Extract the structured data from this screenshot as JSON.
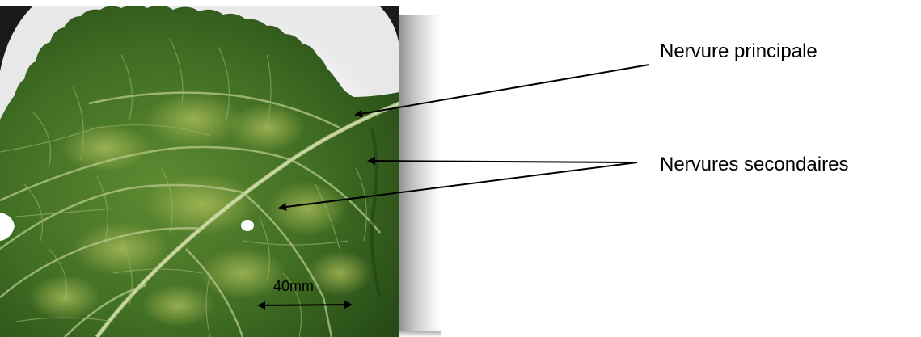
{
  "annotations": {
    "main_vein_label": "Nervure principale",
    "secondary_veins_label": "Nervures secondaires",
    "scale_label": "40mm"
  },
  "colors": {
    "leaf_dark": "#2f5a1c",
    "leaf_mid": "#4f7d2c",
    "leaf_light": "#a4b85a",
    "vein": "#b8c98a",
    "background": "#ffffff",
    "arrow": "#000000"
  }
}
